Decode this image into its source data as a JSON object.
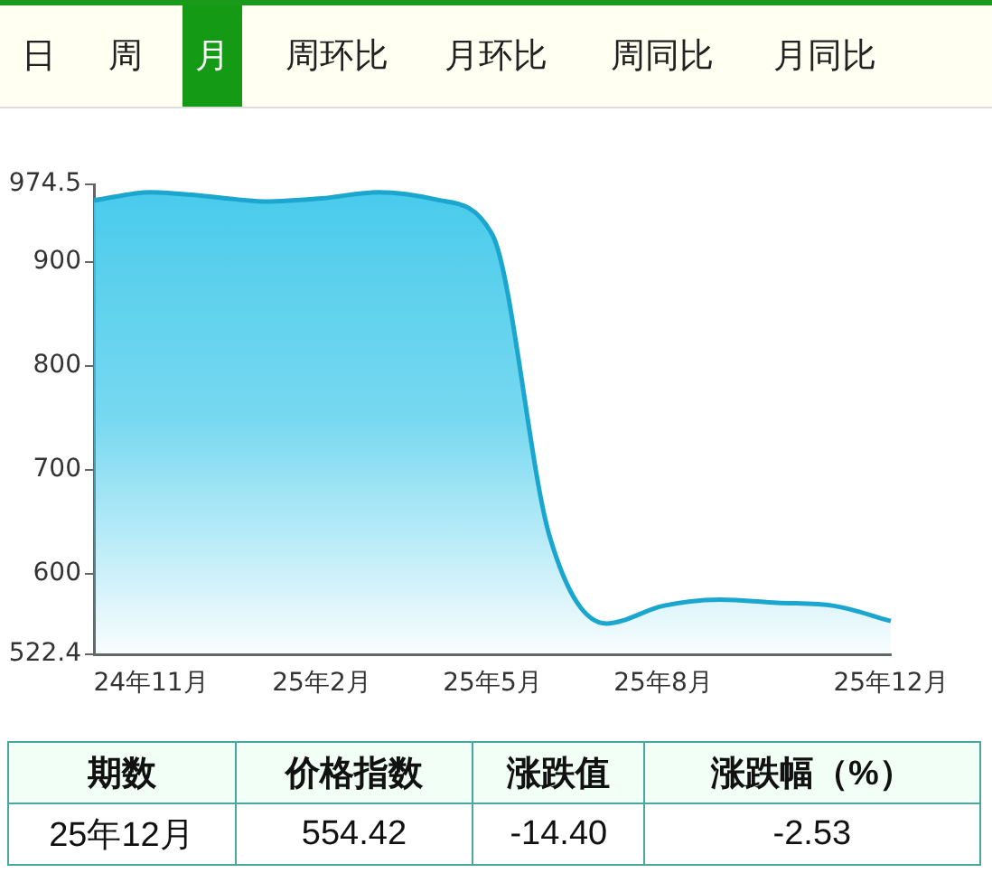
{
  "chart_data": {
    "type": "area",
    "categories": [
      null,
      "24年11月",
      null,
      null,
      "25年2月",
      null,
      null,
      "25年5月",
      null,
      null,
      "25年8月",
      null,
      null,
      null,
      "25年12月"
    ],
    "values": [
      959,
      967,
      963,
      958,
      961,
      967,
      960,
      926,
      637,
      552,
      569,
      575,
      572,
      569,
      554.42
    ],
    "color": "#1ba6cf",
    "ylim": [
      522.4,
      974.5
    ],
    "yticks": [
      522.4,
      600,
      700,
      800,
      900,
      974.5
    ],
    "grid": false,
    "legend": false,
    "annotations": [
      "日",
      "周",
      "月",
      "周环比",
      "月环比",
      "周同比",
      "月同比",
      "期数",
      "价格指数",
      "涨跌值",
      "涨跌幅（%）",
      "25年12月",
      "554.42",
      "-14.40",
      "-2.53"
    ]
  }
}
